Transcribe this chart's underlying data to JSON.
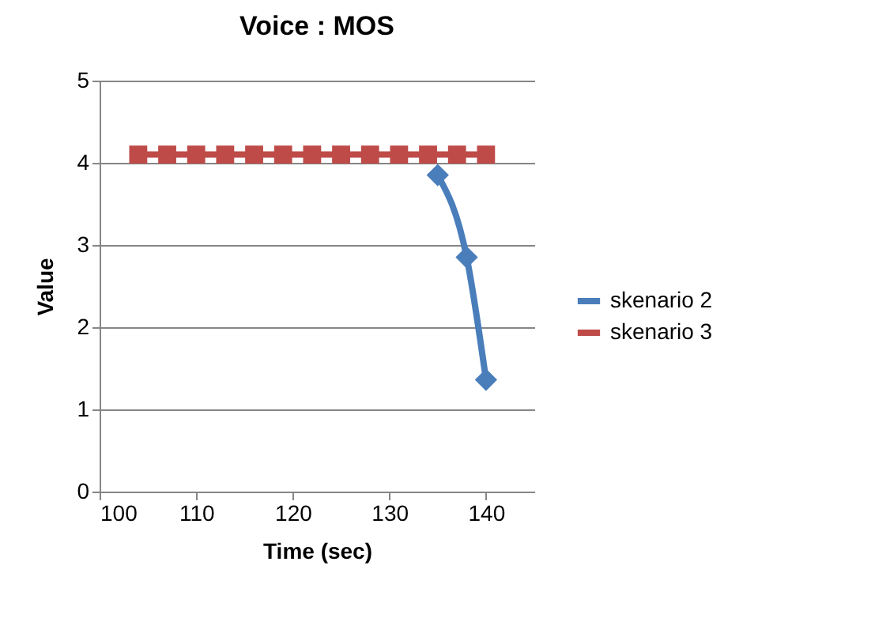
{
  "chart_data": {
    "type": "line",
    "title": "Voice : MOS",
    "xlabel": "Time (sec)",
    "ylabel": "Value",
    "xlim": [
      100,
      145
    ],
    "xticks": [
      100,
      110,
      120,
      130,
      140
    ],
    "ylim": [
      0,
      5
    ],
    "yticks": [
      0,
      1,
      2,
      3,
      4,
      5
    ],
    "grid": "y",
    "legend": "right",
    "line_style": "solid",
    "series": [
      {
        "name": "skenario 2",
        "color": "#4a7ebb",
        "marker": "diamond",
        "x": [
          135,
          138,
          140
        ],
        "values": [
          3.85,
          2.85,
          1.36
        ]
      },
      {
        "name": "skenario 3",
        "color": "#be4b48",
        "marker": "square",
        "x": [
          104,
          107,
          110,
          113,
          116,
          119,
          122,
          125,
          128,
          131,
          134,
          137,
          140
        ],
        "values": [
          4.1,
          4.1,
          4.1,
          4.1,
          4.1,
          4.1,
          4.1,
          4.1,
          4.1,
          4.1,
          4.1,
          4.1,
          4.1
        ]
      }
    ]
  }
}
